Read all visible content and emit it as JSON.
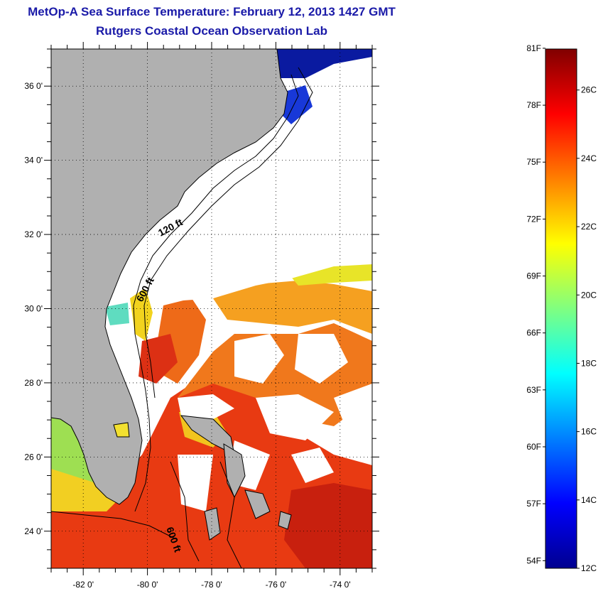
{
  "title": {
    "line1": "MetOp-A Sea Surface Temperature:  February 12, 2013 1427 GMT",
    "line2": "Rutgers Coastal Ocean Observation Lab"
  },
  "map": {
    "lon_range": [
      -83,
      -73
    ],
    "lat_range": [
      23,
      37
    ],
    "lon_ticks": [
      {
        "value": -82,
        "label": "-82 0'"
      },
      {
        "value": -80,
        "label": "-80 0'"
      },
      {
        "value": -78,
        "label": "-78 0'"
      },
      {
        "value": -76,
        "label": "-76 0'"
      },
      {
        "value": -74,
        "label": "-74 0'"
      }
    ],
    "lat_ticks": [
      {
        "value": 36,
        "label": "36 0'"
      },
      {
        "value": 34,
        "label": "34 0'"
      },
      {
        "value": 32,
        "label": "32 0'"
      },
      {
        "value": 30,
        "label": "30 0'"
      },
      {
        "value": 28,
        "label": "28 0'"
      },
      {
        "value": 26,
        "label": "26 0'"
      },
      {
        "value": 24,
        "label": "24 0'"
      }
    ],
    "grid": "dotted",
    "contour_labels": [
      "120 ft",
      "600 ft",
      "600 ft"
    ],
    "colors": {
      "land": "#b0b0b0",
      "cloud": "#ffffff"
    }
  },
  "colorbar": {
    "fahrenheit_labels": [
      "81F",
      "78F",
      "75F",
      "72F",
      "69F",
      "66F",
      "63F",
      "60F",
      "57F",
      "54F"
    ],
    "celsius_labels": [
      "26C",
      "24C",
      "22C",
      "20C",
      "18C",
      "16C",
      "14C",
      "12C"
    ],
    "min_c": 12,
    "max_c": 27.2,
    "colormap": "jet"
  }
}
